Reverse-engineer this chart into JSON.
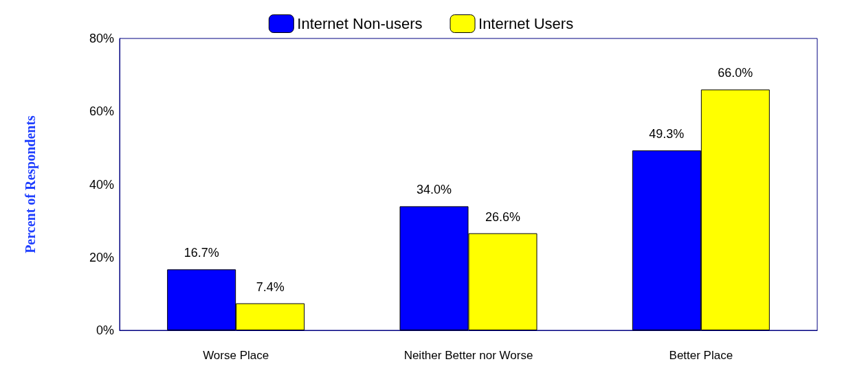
{
  "chart_data": {
    "type": "bar",
    "ylabel": "Percent of Respondents",
    "categories": [
      "Worse Place",
      "Neither Better nor Worse",
      "Better Place"
    ],
    "series": [
      {
        "name": "Internet Non-users",
        "color": "#0000ff",
        "values": [
          16.7,
          34.0,
          49.3
        ],
        "value_labels": [
          "16.7%",
          "34.0%",
          "49.3%"
        ]
      },
      {
        "name": "Internet Users",
        "color": "#ffff00",
        "values": [
          7.4,
          26.6,
          66.0
        ],
        "value_labels": [
          "7.4%",
          "26.6%",
          "66.0%"
        ]
      }
    ],
    "ylim": [
      0,
      80
    ],
    "yticks": [
      {
        "value": 0,
        "label": "0%"
      },
      {
        "value": 20,
        "label": "20%"
      },
      {
        "value": 40,
        "label": "40%"
      },
      {
        "value": 60,
        "label": "60%"
      },
      {
        "value": 80,
        "label": "80%"
      }
    ],
    "grid": false,
    "legend": "top"
  }
}
